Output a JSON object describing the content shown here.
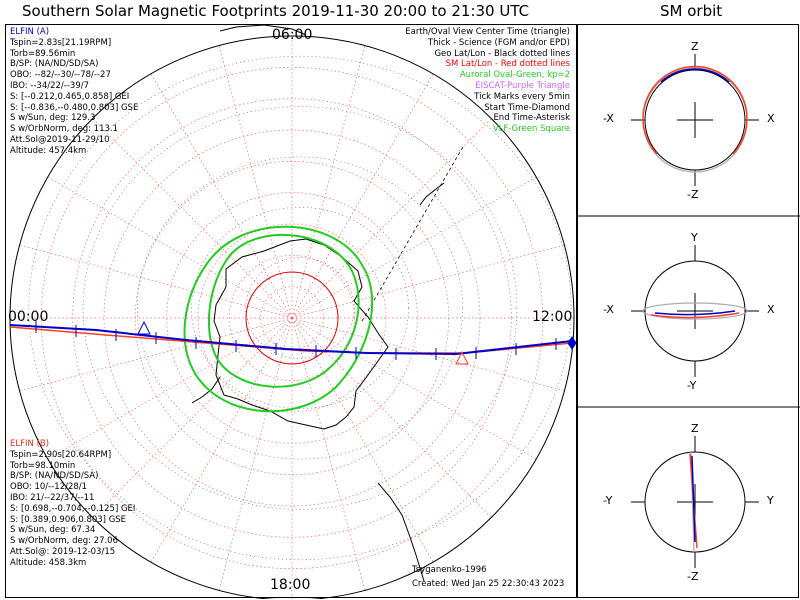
{
  "header": {
    "title": "Southern Solar Magnetic Footprints 2019-11-30 20:00 to 21:30 UTC",
    "sm_orbit_title": "SM orbit"
  },
  "map_labels": {
    "top": "06:00",
    "left": "00:00",
    "right": "12:00",
    "bottom": "18:00"
  },
  "elfin_a": {
    "name": "ELFIN (A)",
    "lines": [
      "Tspin=2.83s[21.19RPM]",
      "Torb=89.56min",
      "B/SP: (NA/ND/SD/SA)",
      "OBO: --82/--30/--78/--27",
      "IBO: --34/22/--39/7",
      "S: [--0.212,0.465,0.858] GEI",
      "S: [--0.836,--0.480,0.803] GSE",
      "S w/Sun, deg: 129.3",
      "S w/OrbNorm, deg: 113.1",
      "Att.Sol@2019-11-29/10",
      "Altitude: 457.4km"
    ]
  },
  "elfin_b": {
    "name": "ELFIN (B)",
    "lines": [
      "Tspin=2.90s[20.64RPM]",
      "Torb=98.10min",
      "B/SP: (NA/ND/SD/SA)",
      "OBO: 10/--12/28/1",
      "IBO: 21/--22/37/--11",
      "S: [0.698,--0.704,--0.125] GEI",
      "S: [0.389,0.906,0.803] GSE",
      "S w/Sun, deg: 67.34",
      "S w/OrbNorm, deg: 27.06",
      "Att.Sol@: 2019-12-03/15",
      "Altitude: 458.3km"
    ]
  },
  "legend": {
    "lines": [
      {
        "text": "Earth/Oval View Center Time (triangle)",
        "color": "#000000"
      },
      {
        "text": "Thick - Science (FGM and/or EPD)",
        "color": "#000000"
      },
      {
        "text": "Geo Lat/Lon - Black dotted lines",
        "color": "#000000"
      },
      {
        "text": "SM Lat/Lon - Red dotted lines",
        "color": "#ff0000"
      },
      {
        "text": "Auroral Oval-Green, kp=2",
        "color": "#22cc22"
      },
      {
        "text": "EISCAT-Purple Triangle",
        "color": "#cc66ff"
      },
      {
        "text": "Tick Marks every 5min",
        "color": "#000000"
      },
      {
        "text": "Start Time-Diamond",
        "color": "#000000"
      },
      {
        "text": "End Time-Asterisk",
        "color": "#000000"
      },
      {
        "text": "VLF-Green Square",
        "color": "#22cc22"
      }
    ]
  },
  "footer": {
    "model": "Tsyganenko-1996",
    "created": "Created: Wed Jan 25 22:30:43 2023"
  },
  "orbit_panels": [
    {
      "top": "Z",
      "bottom": "-Z",
      "left": "-X",
      "right": "X"
    },
    {
      "top": "Y",
      "bottom": "-Y",
      "left": "-X",
      "right": "X"
    },
    {
      "top": "Z",
      "bottom": "-Z",
      "left": "-Y",
      "right": "Y"
    }
  ],
  "colors": {
    "elfin_a": "#0000cc",
    "elfin_b": "#ff4020",
    "sm_grid": "#ff0000",
    "auroral_oval": "#22cc22"
  },
  "chart_data": {
    "type": "polar-map",
    "title": "Southern Solar Magnetic Footprints 2019-11-30 20:00 to 21:30 UTC",
    "mlt_labels": [
      "00:00",
      "06:00",
      "12:00",
      "18:00"
    ],
    "series": [
      {
        "name": "ELFIN (A)",
        "color": "#0000cc"
      },
      {
        "name": "ELFIN (B)",
        "color": "#ff4020"
      }
    ]
  }
}
